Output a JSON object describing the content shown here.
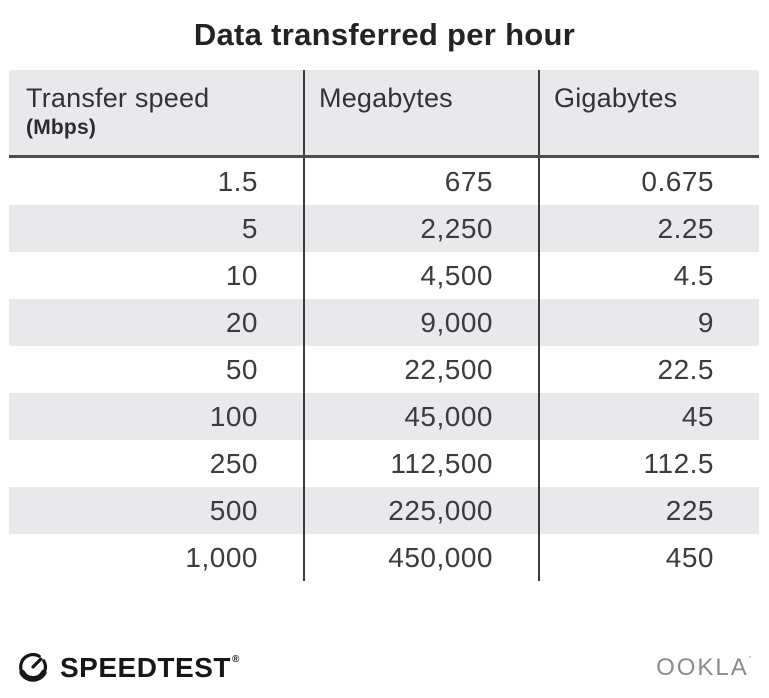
{
  "title": "Data transferred per hour",
  "table": {
    "headers": [
      {
        "label": "Transfer speed",
        "sub": "(Mbps)"
      },
      {
        "label": "Megabytes"
      },
      {
        "label": "Gigabytes"
      }
    ],
    "rows": [
      [
        "1.5",
        "675",
        "0.675"
      ],
      [
        "5",
        "2,250",
        "2.25"
      ],
      [
        "10",
        "4,500",
        "4.5"
      ],
      [
        "20",
        "9,000",
        "9"
      ],
      [
        "50",
        "22,500",
        "22.5"
      ],
      [
        "100",
        "45,000",
        "45"
      ],
      [
        "250",
        "112,500",
        "112.5"
      ],
      [
        "500",
        "225,000",
        "225"
      ],
      [
        "1,000",
        "450,000",
        "450"
      ]
    ]
  },
  "footer": {
    "brand": "SPEEDTEST",
    "brand_mark": "®",
    "company": "OOKLA",
    "company_mark": "’"
  },
  "icons": {
    "gauge": "speedometer-gauge-icon"
  },
  "colors": {
    "bg": "#ffffff",
    "stripe": "#e9e8ea",
    "divider": "#3c3c3e",
    "header-border": "#4c4c4e",
    "text": "#3b3b40",
    "title": "#232327",
    "brand-dark": "#17171b",
    "ookla-gray": "#8b8b8b"
  },
  "chart_data": {
    "type": "table",
    "title": "Data transferred per hour",
    "columns": [
      "Transfer speed (Mbps)",
      "Megabytes",
      "Gigabytes"
    ],
    "transfer_speed_mbps": [
      1.5,
      5,
      10,
      20,
      50,
      100,
      250,
      500,
      1000
    ],
    "megabytes_per_hour": [
      675,
      2250,
      4500,
      9000,
      22500,
      45000,
      112500,
      225000,
      450000
    ],
    "gigabytes_per_hour": [
      0.675,
      2.25,
      4.5,
      9,
      22.5,
      45,
      112.5,
      225,
      450
    ],
    "layout": {
      "zebra_striping": true,
      "stripe_rows": "even",
      "column_dividers": true
    }
  }
}
